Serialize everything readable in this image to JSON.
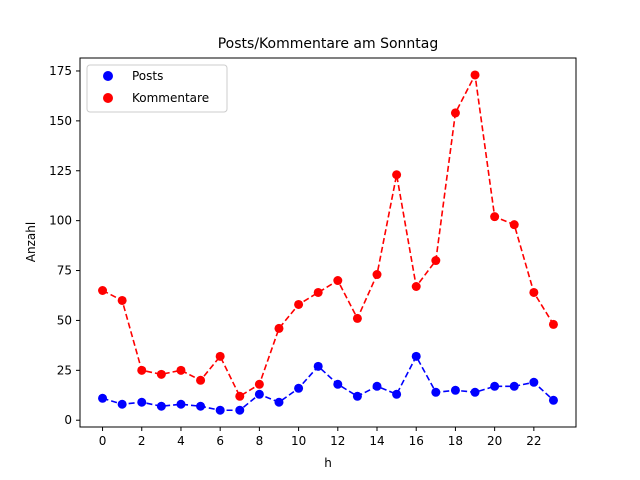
{
  "chart_data": {
    "type": "line",
    "title": "Posts/Kommentare am Sonntag",
    "xlabel": "h",
    "ylabel": "Anzahl",
    "xlim": [
      -1.15,
      24.15
    ],
    "ylim": [
      -3.4,
      181.5
    ],
    "x_ticks": [
      0,
      2,
      4,
      6,
      8,
      10,
      12,
      14,
      16,
      18,
      20,
      22
    ],
    "y_ticks": [
      0,
      25,
      50,
      75,
      100,
      125,
      150,
      175
    ],
    "grid": false,
    "legend_position": "upper-left",
    "x": [
      0,
      1,
      2,
      3,
      4,
      5,
      6,
      7,
      8,
      9,
      10,
      11,
      12,
      13,
      14,
      15,
      16,
      17,
      18,
      19,
      20,
      21,
      22,
      23
    ],
    "series": [
      {
        "name": "Posts",
        "color": "#0000ff",
        "line_style": "dashed",
        "marker": "circle",
        "values": [
          11,
          8,
          9,
          7,
          8,
          7,
          5,
          5,
          13,
          9,
          16,
          27,
          18,
          12,
          17,
          13,
          32,
          14,
          15,
          14,
          17,
          17,
          19,
          10
        ]
      },
      {
        "name": "Kommentare",
        "color": "#ff0000",
        "line_style": "dashed",
        "marker": "circle",
        "values": [
          65,
          60,
          25,
          23,
          25,
          20,
          32,
          12,
          18,
          46,
          58,
          64,
          70,
          51,
          73,
          123,
          67,
          80,
          154,
          173,
          102,
          98,
          64,
          48
        ]
      }
    ]
  }
}
